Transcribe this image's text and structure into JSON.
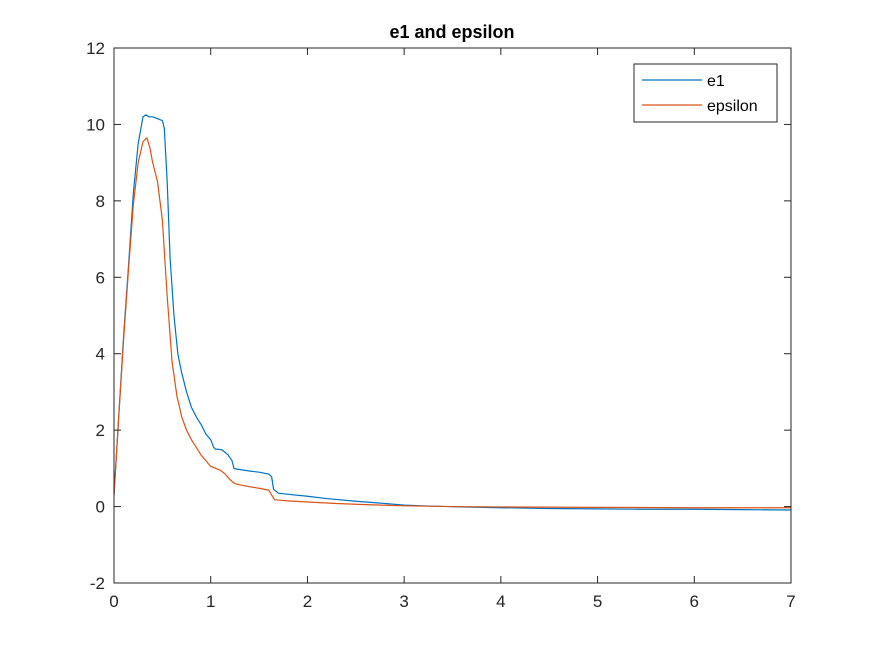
{
  "chart_data": {
    "type": "line",
    "title": "e1 and epsilon",
    "xlabel": "",
    "ylabel": "",
    "xlim": [
      0,
      7
    ],
    "ylim": [
      -2,
      12
    ],
    "xticks": [
      0,
      1,
      2,
      3,
      4,
      5,
      6,
      7
    ],
    "yticks": [
      -2,
      0,
      2,
      4,
      6,
      8,
      10,
      12
    ],
    "grid": false,
    "legend": "top-right",
    "series": [
      {
        "name": "e1",
        "color": "#0072BD",
        "x": [
          0,
          0.05,
          0.1,
          0.15,
          0.2,
          0.25,
          0.3,
          0.33,
          0.36,
          0.4,
          0.45,
          0.5,
          0.52,
          0.55,
          0.58,
          0.62,
          0.66,
          0.7,
          0.75,
          0.8,
          0.85,
          0.9,
          0.95,
          1.0,
          1.03,
          1.05,
          1.08,
          1.12,
          1.18,
          1.22,
          1.24,
          1.27,
          1.3,
          1.4,
          1.5,
          1.6,
          1.63,
          1.65,
          1.7,
          1.8,
          2.0,
          2.2,
          2.5,
          2.8,
          3.0,
          3.3,
          3.6,
          4.0,
          4.5,
          5.0,
          5.5,
          6.0,
          6.5,
          7.0
        ],
        "y": [
          0.3,
          2.4,
          4.5,
          6.3,
          8.2,
          9.5,
          10.2,
          10.25,
          10.2,
          10.2,
          10.15,
          10.1,
          9.9,
          8.5,
          6.5,
          5.0,
          4.0,
          3.5,
          3.0,
          2.6,
          2.35,
          2.15,
          1.9,
          1.75,
          1.55,
          1.5,
          1.5,
          1.48,
          1.35,
          1.2,
          1.0,
          0.98,
          0.97,
          0.93,
          0.9,
          0.85,
          0.78,
          0.45,
          0.35,
          0.32,
          0.27,
          0.21,
          0.14,
          0.08,
          0.04,
          0.01,
          -0.01,
          -0.03,
          -0.05,
          -0.06,
          -0.07,
          -0.07,
          -0.08,
          -0.09
        ]
      },
      {
        "name": "epsilon",
        "color": "#D95319",
        "x": [
          0,
          0.05,
          0.1,
          0.15,
          0.2,
          0.25,
          0.3,
          0.34,
          0.37,
          0.4,
          0.45,
          0.5,
          0.55,
          0.6,
          0.65,
          0.7,
          0.75,
          0.8,
          0.85,
          0.9,
          0.95,
          1.0,
          1.05,
          1.1,
          1.15,
          1.2,
          1.25,
          1.3,
          1.4,
          1.5,
          1.6,
          1.63,
          1.66,
          1.7,
          1.8,
          2.0,
          2.3,
          2.6,
          3.0,
          3.5,
          4.0,
          5.0,
          6.0,
          7.0
        ],
        "y": [
          0.3,
          2.4,
          4.4,
          6.2,
          7.9,
          9.0,
          9.55,
          9.65,
          9.4,
          9.0,
          8.5,
          7.5,
          5.5,
          3.8,
          2.9,
          2.35,
          2.0,
          1.75,
          1.55,
          1.35,
          1.2,
          1.05,
          1.0,
          0.95,
          0.85,
          0.7,
          0.6,
          0.57,
          0.52,
          0.48,
          0.43,
          0.3,
          0.18,
          0.17,
          0.15,
          0.12,
          0.08,
          0.05,
          0.02,
          0.0,
          -0.01,
          -0.02,
          -0.03,
          -0.03
        ]
      }
    ]
  }
}
